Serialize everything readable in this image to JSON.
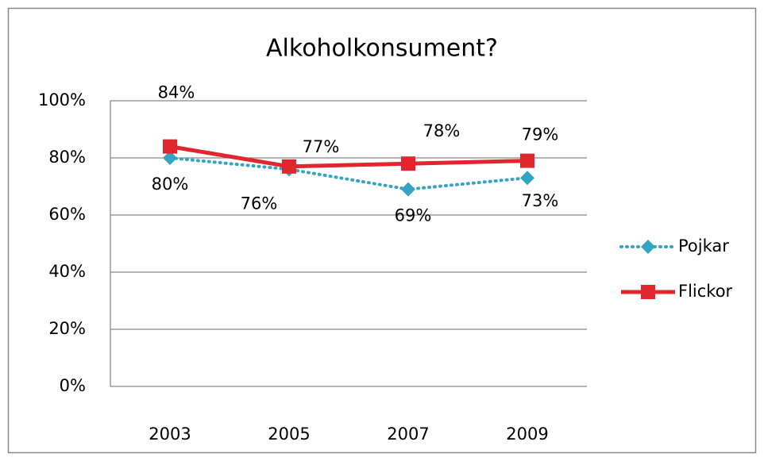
{
  "chart_data": {
    "type": "line",
    "title": "Alkoholkonsument?",
    "categories": [
      "2003",
      "2005",
      "2007",
      "2009"
    ],
    "series": [
      {
        "name": "Pojkar",
        "color": "#35a3c4",
        "line_style": "dotted",
        "marker": "diamond",
        "values": [
          80,
          76,
          69,
          73
        ],
        "value_labels": [
          "80%",
          "76%",
          "69%",
          "73%"
        ]
      },
      {
        "name": "Flickor",
        "color": "#e2262e",
        "line_style": "solid",
        "marker": "square",
        "values": [
          84,
          77,
          78,
          79
        ],
        "value_labels": [
          "84%",
          "77%",
          "78%",
          "79%"
        ]
      }
    ],
    "ylim": [
      0,
      100
    ],
    "yticks": [
      {
        "value": 0,
        "label": "0%"
      },
      {
        "value": 20,
        "label": "20%"
      },
      {
        "value": 40,
        "label": "40%"
      },
      {
        "value": 60,
        "label": "60%"
      },
      {
        "value": 80,
        "label": "80%"
      },
      {
        "value": 100,
        "label": "100%"
      }
    ],
    "grid": true,
    "legend": "right"
  }
}
